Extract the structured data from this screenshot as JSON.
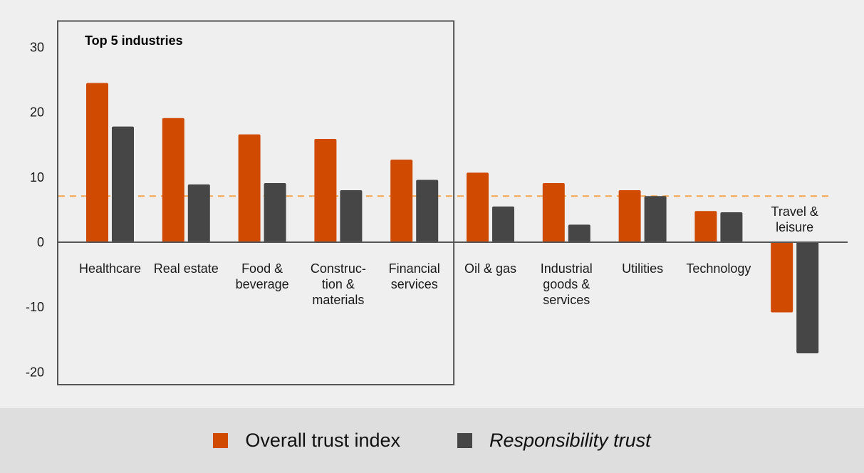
{
  "chart_data": {
    "type": "bar",
    "title": "",
    "xlabel": "",
    "ylabel": "",
    "ylim": [
      -22,
      34
    ],
    "yticks": [
      30,
      20,
      10,
      0,
      -10,
      -20
    ],
    "grid": false,
    "legend_position": "bottom",
    "categories": [
      "Healthcare",
      "Real estate",
      "Food & beverage",
      "Construction & materials",
      "Financial services",
      "Oil & gas",
      "Industrial goods & services",
      "Utilities",
      "Technology",
      "Travel & leisure"
    ],
    "category_label_lines": [
      [
        "Healthcare"
      ],
      [
        "Real estate"
      ],
      [
        "Food &",
        "beverage"
      ],
      [
        "Construc-",
        "tion &",
        "materials"
      ],
      [
        "Financial",
        "services"
      ],
      [
        "Oil & gas"
      ],
      [
        "Industrial",
        "goods &",
        "services"
      ],
      [
        "Utilities"
      ],
      [
        "Technology"
      ],
      [
        "Travel &",
        "leisure"
      ]
    ],
    "series": [
      {
        "name": "Overall trust index",
        "color": "#d04a02",
        "italic": false,
        "values": [
          24.5,
          19.1,
          16.6,
          15.9,
          12.7,
          10.7,
          9.1,
          8.0,
          4.8,
          -10.8
        ]
      },
      {
        "name": "Responsibility trust",
        "color": "#464646",
        "italic": true,
        "values": [
          17.8,
          8.9,
          9.1,
          8.0,
          9.6,
          5.5,
          2.7,
          7.1,
          4.6,
          -17.1
        ]
      }
    ],
    "reference_line": {
      "value": 7.1,
      "style": "dashed",
      "color": "#f5a54a"
    },
    "highlight_box": {
      "title": "Top 5 industries",
      "categories_covered": 5
    }
  },
  "legend": {
    "items": [
      {
        "label": "Overall trust index",
        "color": "#d04a02",
        "italic": false
      },
      {
        "label": "Responsibility trust",
        "color": "#464646",
        "italic": true
      }
    ]
  }
}
